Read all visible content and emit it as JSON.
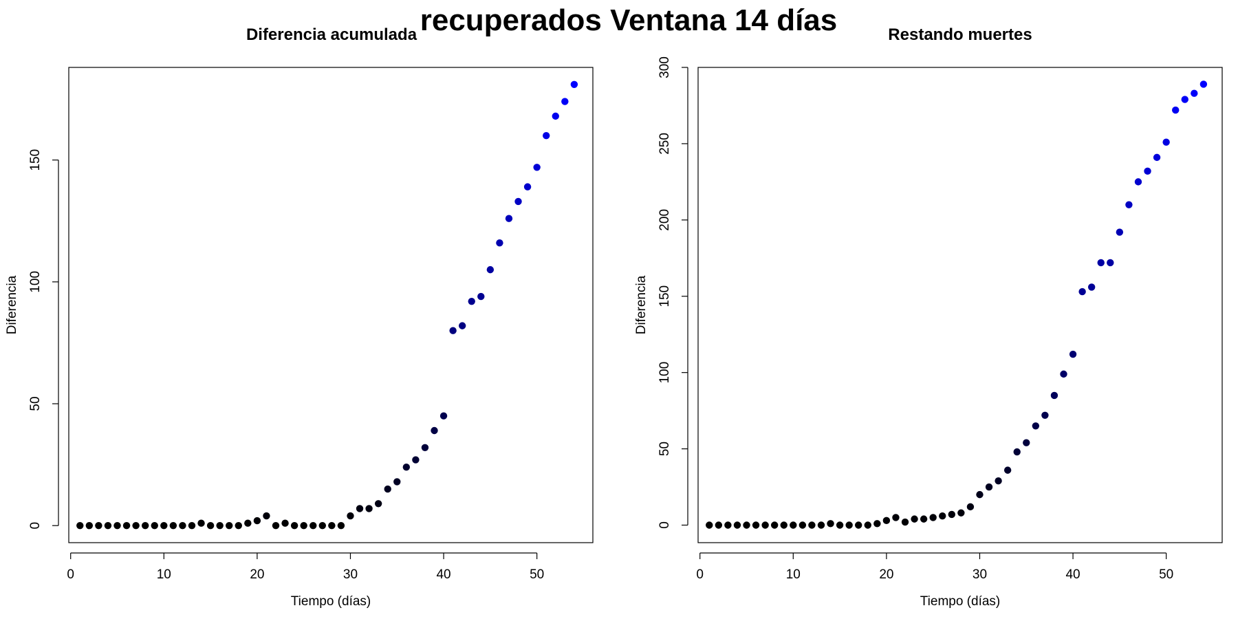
{
  "page_title": "recuperados Ventana 14 días",
  "chart_data": [
    {
      "type": "scatter",
      "title": "Diferencia acumulada",
      "xlabel": "Tiempo (días)",
      "ylabel": "Diferencia",
      "xlim": [
        -0.2,
        56
      ],
      "ylim": [
        -7,
        188
      ],
      "xticks": [
        0,
        10,
        20,
        30,
        40,
        50
      ],
      "yticks": [
        0,
        50,
        100,
        150
      ],
      "grid": false,
      "point_color_gradient": [
        "#000000",
        "#0000ff"
      ],
      "x": [
        1,
        2,
        3,
        4,
        5,
        6,
        7,
        8,
        9,
        10,
        11,
        12,
        13,
        14,
        15,
        16,
        17,
        18,
        19,
        20,
        21,
        22,
        23,
        24,
        25,
        26,
        27,
        28,
        29,
        30,
        31,
        32,
        33,
        34,
        35,
        36,
        37,
        38,
        39,
        40,
        41,
        42,
        43,
        44,
        45,
        46,
        47,
        48,
        49,
        50,
        51,
        52,
        53,
        54
      ],
      "y": [
        0,
        0,
        0,
        0,
        0,
        0,
        0,
        0,
        0,
        0,
        0,
        0,
        0,
        1,
        0,
        0,
        0,
        0,
        1,
        2,
        4,
        0,
        1,
        0,
        0,
        0,
        0,
        0,
        0,
        4,
        7,
        7,
        9,
        15,
        18,
        24,
        27,
        32,
        39,
        45,
        80,
        82,
        92,
        94,
        105,
        116,
        126,
        133,
        139,
        147,
        160,
        168,
        174,
        181
      ]
    },
    {
      "type": "scatter",
      "title": "Restando muertes",
      "xlabel": "Tiempo (días)",
      "ylabel": "Diferencia",
      "xlim": [
        -0.2,
        56
      ],
      "ylim": [
        -11.5,
        300
      ],
      "xticks": [
        0,
        10,
        20,
        30,
        40,
        50
      ],
      "yticks": [
        0,
        50,
        100,
        150,
        200,
        250,
        300
      ],
      "grid": false,
      "point_color_gradient": [
        "#000000",
        "#0000ff"
      ],
      "x": [
        1,
        2,
        3,
        4,
        5,
        6,
        7,
        8,
        9,
        10,
        11,
        12,
        13,
        14,
        15,
        16,
        17,
        18,
        19,
        20,
        21,
        22,
        23,
        24,
        25,
        26,
        27,
        28,
        29,
        30,
        31,
        32,
        33,
        34,
        35,
        36,
        37,
        38,
        39,
        40,
        41,
        42,
        43,
        44,
        45,
        46,
        47,
        48,
        49,
        50,
        51,
        52,
        53,
        54
      ],
      "y": [
        0,
        0,
        0,
        0,
        0,
        0,
        0,
        0,
        0,
        0,
        0,
        0,
        0,
        1,
        0,
        0,
        0,
        0,
        1,
        3,
        5,
        2,
        4,
        4,
        5,
        6,
        7,
        8,
        12,
        20,
        25,
        29,
        36,
        48,
        54,
        65,
        72,
        85,
        99,
        112,
        153,
        156,
        172,
        172,
        192,
        210,
        225,
        232,
        241,
        251,
        272,
        279,
        283,
        289
      ]
    }
  ]
}
